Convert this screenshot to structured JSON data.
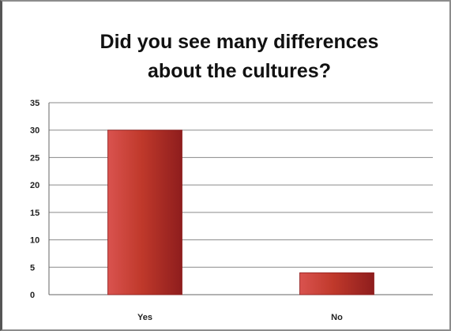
{
  "chart_data": {
    "type": "bar",
    "title_lines": [
      "Did you see many differences",
      "about the cultures?"
    ],
    "categories": [
      "Yes",
      "No"
    ],
    "values": [
      30,
      4
    ],
    "ylim": [
      0,
      35
    ],
    "yticks": [
      0,
      5,
      10,
      15,
      20,
      25,
      30,
      35
    ],
    "grid": true,
    "legend": "none",
    "colors": {
      "bar_light": "#d9534f",
      "bar_main": "#c0392b",
      "bar_dark": "#8e1d1d",
      "grid": "#8a8a8a"
    }
  }
}
